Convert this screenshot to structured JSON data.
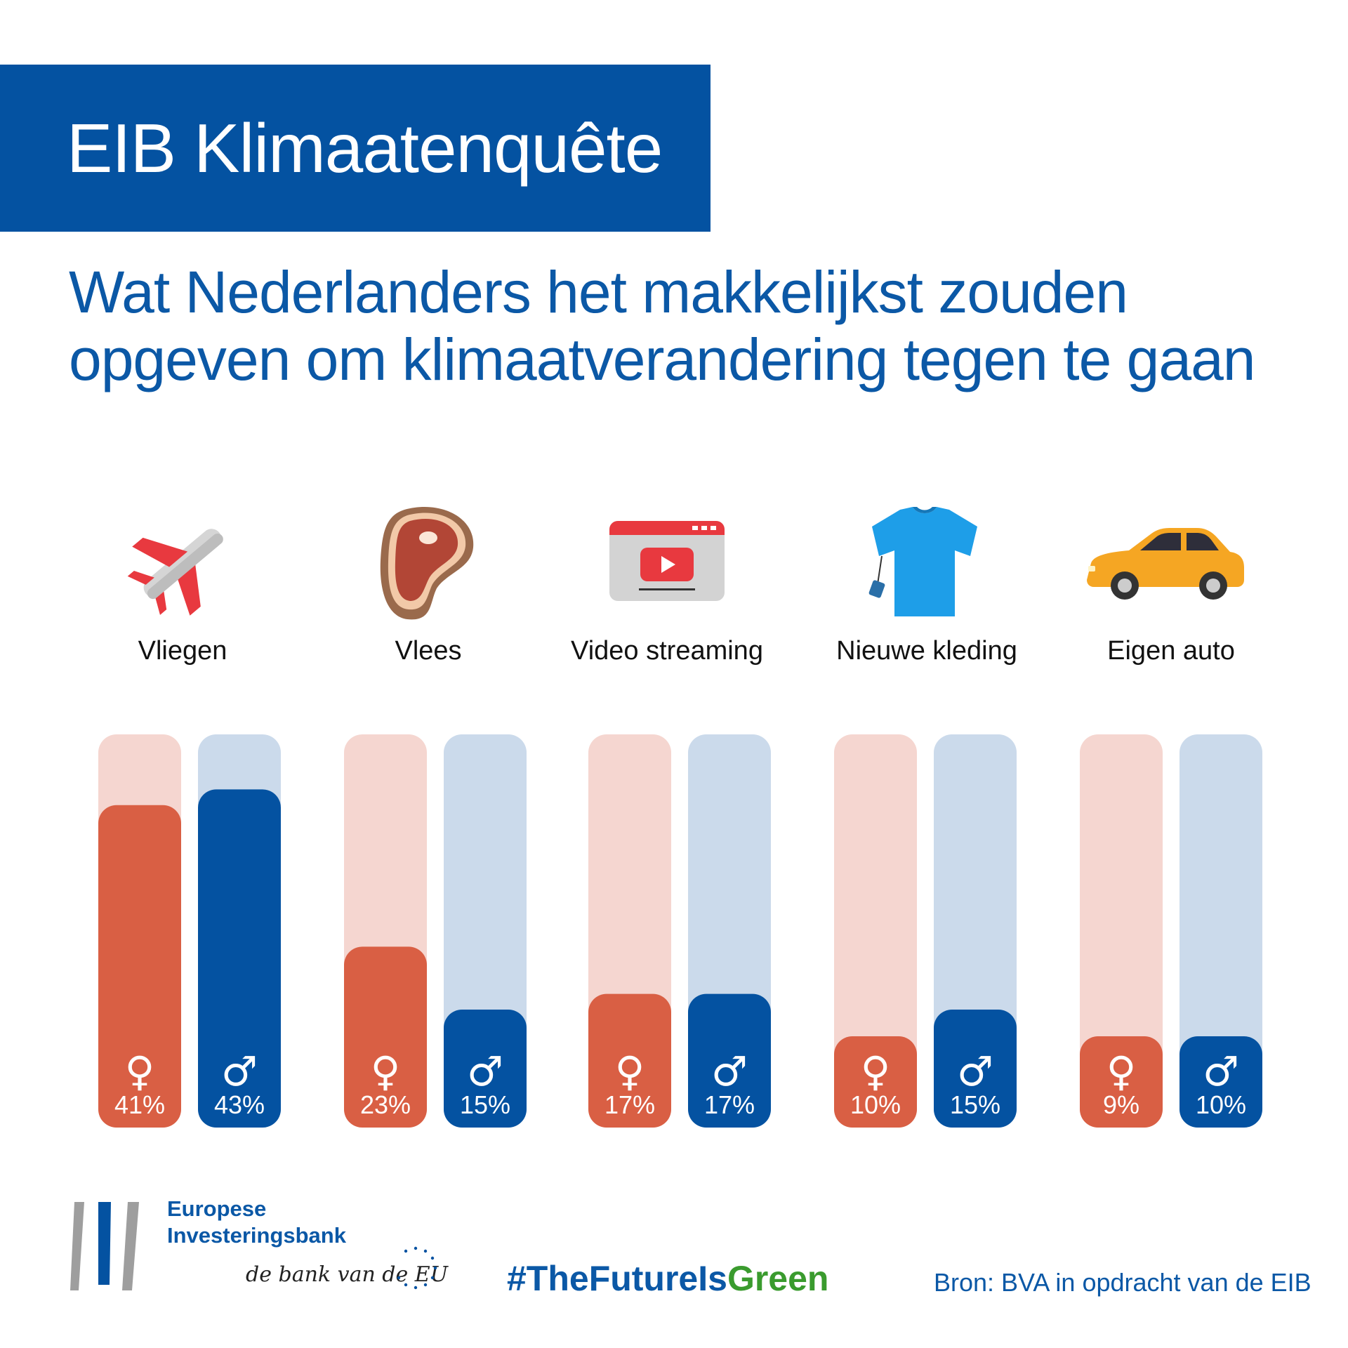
{
  "header": {
    "title": "EIB Klimaatenquête"
  },
  "subtitle": "Wat Nederlanders het makkelijkst zouden opgeven om klimaatverandering tegen te gaan",
  "categories": [
    {
      "label": "Vliegen",
      "icon": "airplane-icon"
    },
    {
      "label": "Vlees",
      "icon": "steak-icon"
    },
    {
      "label": "Video streaming",
      "icon": "video-player-icon"
    },
    {
      "label": "Nieuwe kleding",
      "icon": "tshirt-icon"
    },
    {
      "label": "Eigen auto",
      "icon": "car-icon"
    }
  ],
  "chart_data": {
    "type": "bar",
    "title": "Wat Nederlanders het makkelijkst zouden opgeven om klimaatverandering tegen te gaan",
    "categories": [
      "Vliegen",
      "Vlees",
      "Video streaming",
      "Nieuwe kleding",
      "Eigen auto"
    ],
    "series": [
      {
        "name": "Vrouwen",
        "symbol": "♀",
        "color": "#d95f44",
        "track_color": "#f5d6d0",
        "values": [
          41,
          23,
          17,
          10,
          9
        ]
      },
      {
        "name": "Mannen",
        "symbol": "♂",
        "color": "#0452a1",
        "track_color": "#cbdaeb",
        "values": [
          43,
          15,
          17,
          15,
          10
        ]
      }
    ],
    "unit": "%",
    "ylim": [
      0,
      50
    ]
  },
  "footer": {
    "logo_line1": "Europese",
    "logo_line2": "Investeringsbank",
    "tagline": "de bank van de EU",
    "hashtag_part1": "#TheFutureIs",
    "hashtag_part2": "Green",
    "source": "Bron: BVA in opdracht van de EIB"
  },
  "colors": {
    "brand_blue": "#0452a1",
    "female": "#d95f44",
    "male": "#0452a1",
    "green": "#3a9b2e"
  }
}
